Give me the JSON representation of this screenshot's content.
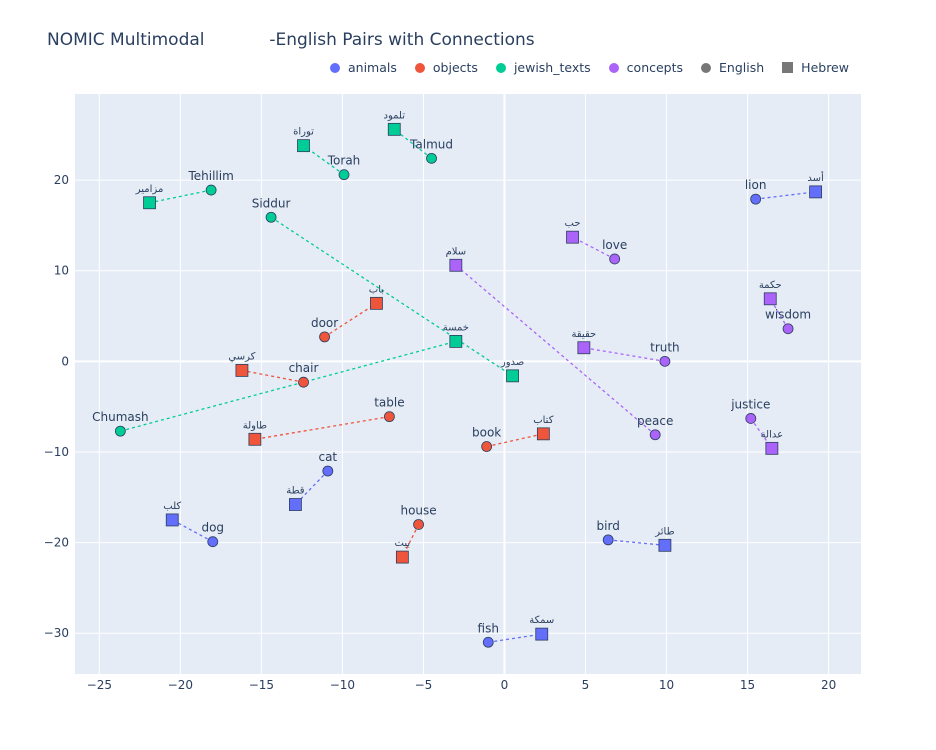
{
  "title": "NOMIC Multimodal            -English Pairs with Connections",
  "legend": [
    {
      "label": "animals",
      "color": "#636efa",
      "shape": "circle"
    },
    {
      "label": "objects",
      "color": "#ef553b",
      "shape": "circle"
    },
    {
      "label": "jewish_texts",
      "color": "#00cc96",
      "shape": "circle"
    },
    {
      "label": "concepts",
      "color": "#ab63fa",
      "shape": "circle"
    },
    {
      "label": "English",
      "color": "#777777",
      "shape": "circle"
    },
    {
      "label": "Hebrew",
      "color": "#777777",
      "shape": "square"
    }
  ],
  "chart_data": {
    "type": "scatter",
    "title": "NOMIC Multimodal            -English Pairs with Connections",
    "xlim": [
      -26.5,
      22
    ],
    "ylim": [
      -34.5,
      29.5
    ],
    "xticks": [
      -25,
      -20,
      -15,
      -10,
      -5,
      0,
      5,
      10,
      15,
      20
    ],
    "yticks": [
      -30,
      -20,
      -10,
      0,
      10,
      20
    ],
    "tick_labels_x": [
      "−25",
      "−20",
      "−15",
      "−10",
      "−5",
      "0",
      "5",
      "10",
      "15",
      "20"
    ],
    "tick_labels_y": [
      "−30",
      "−20",
      "−10",
      "0",
      "10",
      "20"
    ],
    "grid": true,
    "legend_position": "top",
    "colors": {
      "animals": "#636efa",
      "objects": "#ef553b",
      "jewish_texts": "#00cc96",
      "concepts": "#ab63fa"
    },
    "pairs": [
      {
        "category": "animals",
        "en": {
          "label": "lion",
          "x": 15.5,
          "y": 17.9
        },
        "he": {
          "label": "أسد",
          "x": 19.2,
          "y": 18.7
        }
      },
      {
        "category": "animals",
        "en": {
          "label": "cat",
          "x": -10.9,
          "y": -12.1
        },
        "he": {
          "label": "قطة",
          "x": -12.9,
          "y": -15.8
        }
      },
      {
        "category": "animals",
        "en": {
          "label": "dog",
          "x": -18.0,
          "y": -19.9
        },
        "he": {
          "label": "كلب",
          "x": -20.5,
          "y": -17.5
        }
      },
      {
        "category": "animals",
        "en": {
          "label": "bird",
          "x": 6.4,
          "y": -19.7
        },
        "he": {
          "label": "طائر",
          "x": 9.9,
          "y": -20.3
        }
      },
      {
        "category": "animals",
        "en": {
          "label": "fish",
          "x": -1.0,
          "y": -31.0
        },
        "he": {
          "label": "سمكة",
          "x": 2.3,
          "y": -30.1
        }
      },
      {
        "category": "objects",
        "en": {
          "label": "door",
          "x": -11.1,
          "y": 2.7
        },
        "he": {
          "label": "باب",
          "x": -7.9,
          "y": 6.4
        }
      },
      {
        "category": "objects",
        "en": {
          "label": "chair",
          "x": -12.4,
          "y": -2.3
        },
        "he": {
          "label": "كرسي",
          "x": -16.2,
          "y": -1.0
        }
      },
      {
        "category": "objects",
        "en": {
          "label": "table",
          "x": -7.1,
          "y": -6.1
        },
        "he": {
          "label": "طاولة",
          "x": -15.4,
          "y": -8.6
        }
      },
      {
        "category": "objects",
        "en": {
          "label": "book",
          "x": -1.1,
          "y": -9.4
        },
        "he": {
          "label": "كتاب",
          "x": 2.4,
          "y": -8.0
        }
      },
      {
        "category": "objects",
        "en": {
          "label": "house",
          "x": -5.3,
          "y": -18.0
        },
        "he": {
          "label": "بيت",
          "x": -6.3,
          "y": -21.6
        }
      },
      {
        "category": "jewish_texts",
        "en": {
          "label": "Talmud",
          "x": -4.5,
          "y": 22.4
        },
        "he": {
          "label": "تلمود",
          "x": -6.8,
          "y": 25.6
        }
      },
      {
        "category": "jewish_texts",
        "en": {
          "label": "Torah",
          "x": -9.9,
          "y": 20.6
        },
        "he": {
          "label": "توراة",
          "x": -12.4,
          "y": 23.8
        }
      },
      {
        "category": "jewish_texts",
        "en": {
          "label": "Tehillim",
          "x": -18.1,
          "y": 18.9
        },
        "he": {
          "label": "مزامير",
          "x": -21.9,
          "y": 17.5
        }
      },
      {
        "category": "jewish_texts",
        "en": {
          "label": "Siddur",
          "x": -14.4,
          "y": 15.9
        },
        "he": {
          "label": "صدور",
          "x": 0.5,
          "y": -1.6
        }
      },
      {
        "category": "jewish_texts",
        "en": {
          "label": "Chumash",
          "x": -23.7,
          "y": -7.7
        },
        "he": {
          "label": "خمسة",
          "x": -3.0,
          "y": 2.2
        }
      },
      {
        "category": "concepts",
        "en": {
          "label": "love",
          "x": 6.8,
          "y": 11.3
        },
        "he": {
          "label": "حب",
          "x": 4.2,
          "y": 13.7
        }
      },
      {
        "category": "concepts",
        "en": {
          "label": "wisdom",
          "x": 17.5,
          "y": 3.6
        },
        "he": {
          "label": "حكمة",
          "x": 16.4,
          "y": 6.9
        }
      },
      {
        "category": "concepts",
        "en": {
          "label": "truth",
          "x": 9.9,
          "y": 0.0
        },
        "he": {
          "label": "حقيقة",
          "x": 4.9,
          "y": 1.5
        }
      },
      {
        "category": "concepts",
        "en": {
          "label": "peace",
          "x": 9.3,
          "y": -8.1
        },
        "he": {
          "label": "سلام",
          "x": -3.0,
          "y": 10.6
        }
      },
      {
        "category": "concepts",
        "en": {
          "label": "justice",
          "x": 15.2,
          "y": -6.3
        },
        "he": {
          "label": "عدالة",
          "x": 16.5,
          "y": -9.6
        }
      }
    ]
  }
}
